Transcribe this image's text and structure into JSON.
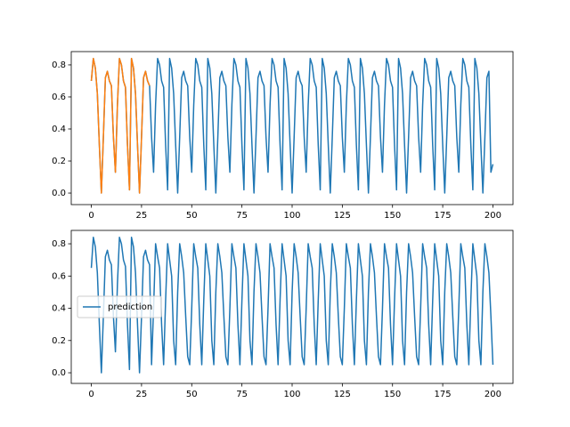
{
  "chart_data": [
    {
      "type": "line",
      "xlim": [
        -10,
        210
      ],
      "xticks": [
        0,
        25,
        50,
        75,
        100,
        125,
        150,
        175,
        200
      ],
      "ylim": [
        -0.072,
        0.883
      ],
      "yticks": [
        {
          "value": 0,
          "label": "0.0"
        },
        0.2,
        0.4,
        0.6,
        0.8
      ],
      "series": [
        {
          "color": "#1f77b4",
          "values": [
            0.7,
            0.84,
            0.78,
            0.62,
            0.3,
            0,
            0.35,
            0.72,
            0.76,
            0.7,
            0.67,
            0.35,
            0.13,
            0.55,
            0.84,
            0.8,
            0.7,
            0.66,
            0.3,
            0.02,
            0.84,
            0.78,
            0.62,
            0.3,
            0,
            0.35,
            0.72,
            0.76,
            0.7,
            0.67,
            0.35,
            0.13,
            0.55,
            0.84,
            0.8,
            0.7,
            0.66,
            0.3,
            0.02,
            0.84,
            0.78,
            0.62,
            0.3,
            0,
            0.35,
            0.72,
            0.76,
            0.7,
            0.67,
            0.35,
            0.13,
            0.55,
            0.84,
            0.8,
            0.7,
            0.66,
            0.3,
            0.02,
            0.84,
            0.78,
            0.62,
            0.3,
            0,
            0.35,
            0.72,
            0.76,
            0.7,
            0.67,
            0.35,
            0.13,
            0.55,
            0.84,
            0.8,
            0.7,
            0.66,
            0.3,
            0.02,
            0.84,
            0.78,
            0.62,
            0.3,
            0,
            0.35,
            0.72,
            0.76,
            0.7,
            0.67,
            0.35,
            0.13,
            0.55,
            0.84,
            0.8,
            0.7,
            0.66,
            0.3,
            0.02,
            0.84,
            0.78,
            0.62,
            0.3,
            0,
            0.35,
            0.72,
            0.76,
            0.7,
            0.67,
            0.35,
            0.13,
            0.55,
            0.84,
            0.8,
            0.7,
            0.66,
            0.3,
            0.02,
            0.84,
            0.78,
            0.62,
            0.3,
            0,
            0.35,
            0.72,
            0.76,
            0.7,
            0.67,
            0.35,
            0.13,
            0.55,
            0.84,
            0.8,
            0.7,
            0.66,
            0.3,
            0.02,
            0.84,
            0.78,
            0.62,
            0.3,
            0,
            0.35,
            0.72,
            0.76,
            0.7,
            0.67,
            0.35,
            0.13,
            0.55,
            0.84,
            0.8,
            0.7,
            0.66,
            0.3,
            0.02,
            0.84,
            0.78,
            0.62,
            0.3,
            0,
            0.35,
            0.72,
            0.76,
            0.7,
            0.67,
            0.35,
            0.13,
            0.55,
            0.84,
            0.8,
            0.7,
            0.66,
            0.3,
            0.02,
            0.84,
            0.78,
            0.62,
            0.3,
            0,
            0.35,
            0.72,
            0.76,
            0.7,
            0.67,
            0.35,
            0.13,
            0.55,
            0.84,
            0.8,
            0.7,
            0.66,
            0.3,
            0.02,
            0.84,
            0.78,
            0.62,
            0.3,
            0,
            0.35,
            0.72,
            0.76,
            0.13,
            0.18
          ]
        },
        {
          "color": "#ff7f0e",
          "values": [
            0.7,
            0.84,
            0.78,
            0.62,
            0.3,
            0,
            0.35,
            0.72,
            0.76,
            0.7,
            0.67,
            0.35,
            0.13,
            0.55,
            0.84,
            0.8,
            0.7,
            0.66,
            0.3,
            0.02,
            0.84,
            0.78,
            0.62,
            0.3,
            0,
            0.35,
            0.72,
            0.76,
            0.7,
            0.67
          ]
        }
      ]
    },
    {
      "type": "line",
      "xlim": [
        -10,
        210
      ],
      "xticks": [
        0,
        25,
        50,
        75,
        100,
        125,
        150,
        175,
        200
      ],
      "ylim": [
        -0.066,
        0.883
      ],
      "yticks": [
        {
          "value": 0,
          "label": "0.0"
        },
        0.2,
        0.4,
        0.6,
        0.8
      ],
      "legend": "center left",
      "series": [
        {
          "name": "prediction",
          "color": "#1f77b4",
          "values": [
            0.65,
            0.84,
            0.78,
            0.62,
            0.3,
            0,
            0.35,
            0.72,
            0.76,
            0.7,
            0.67,
            0.35,
            0.13,
            0.55,
            0.84,
            0.8,
            0.7,
            0.66,
            0.3,
            0.02,
            0.84,
            0.78,
            0.62,
            0.3,
            0,
            0.35,
            0.72,
            0.76,
            0.7,
            0.67,
            0.05,
            0.4,
            0.8,
            0.72,
            0.65,
            0.3,
            0.05,
            0.45,
            0.8,
            0.7,
            0.6,
            0.2,
            0.05,
            0.5,
            0.8,
            0.72,
            0.62,
            0.35,
            0.1,
            0.05,
            0.4,
            0.8,
            0.72,
            0.65,
            0.3,
            0.05,
            0.45,
            0.8,
            0.7,
            0.6,
            0.2,
            0.05,
            0.5,
            0.8,
            0.72,
            0.62,
            0.35,
            0.1,
            0.05,
            0.4,
            0.8,
            0.72,
            0.65,
            0.3,
            0.05,
            0.45,
            0.8,
            0.7,
            0.6,
            0.2,
            0.05,
            0.5,
            0.8,
            0.72,
            0.62,
            0.35,
            0.1,
            0.05,
            0.4,
            0.8,
            0.72,
            0.65,
            0.3,
            0.05,
            0.45,
            0.8,
            0.7,
            0.6,
            0.2,
            0.05,
            0.5,
            0.8,
            0.72,
            0.62,
            0.35,
            0.1,
            0.05,
            0.4,
            0.8,
            0.72,
            0.65,
            0.3,
            0.05,
            0.45,
            0.8,
            0.7,
            0.6,
            0.2,
            0.05,
            0.5,
            0.8,
            0.72,
            0.62,
            0.35,
            0.1,
            0.05,
            0.4,
            0.8,
            0.72,
            0.65,
            0.3,
            0.05,
            0.45,
            0.8,
            0.7,
            0.6,
            0.2,
            0.05,
            0.5,
            0.8,
            0.72,
            0.62,
            0.35,
            0.1,
            0.05,
            0.4,
            0.8,
            0.72,
            0.65,
            0.3,
            0.05,
            0.45,
            0.8,
            0.7,
            0.6,
            0.2,
            0.05,
            0.5,
            0.8,
            0.72,
            0.62,
            0.35,
            0.1,
            0.05,
            0.4,
            0.8,
            0.72,
            0.65,
            0.3,
            0.05,
            0.45,
            0.8,
            0.7,
            0.6,
            0.2,
            0.05,
            0.5,
            0.8,
            0.72,
            0.62,
            0.35,
            0.1,
            0.05,
            0.4,
            0.8,
            0.72,
            0.65,
            0.3,
            0.05,
            0.45,
            0.8,
            0.7,
            0.6,
            0.2,
            0.05,
            0.5,
            0.8,
            0.72,
            0.62,
            0.35,
            0.05
          ]
        }
      ]
    }
  ]
}
